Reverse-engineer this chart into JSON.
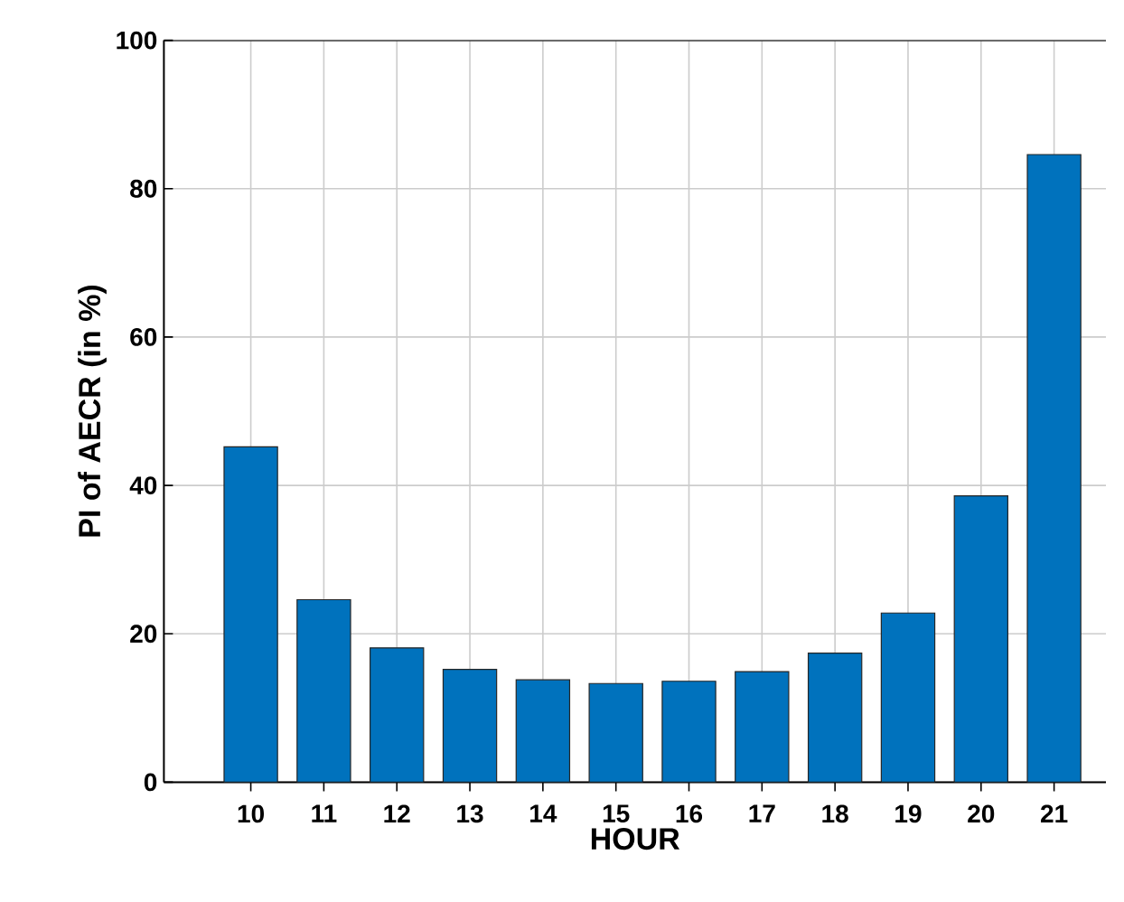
{
  "chart_data": {
    "type": "bar",
    "xlabel": "HOUR",
    "ylabel": "PI of AECR (in %)",
    "categories": [
      "10",
      "11",
      "12",
      "13",
      "14",
      "15",
      "16",
      "17",
      "18",
      "19",
      "20",
      "21"
    ],
    "values": [
      45.2,
      24.6,
      18.1,
      15.2,
      13.8,
      13.3,
      13.6,
      14.9,
      17.4,
      22.8,
      38.6,
      84.6
    ],
    "color": "#0072bd",
    "ylim": [
      0,
      100
    ],
    "yticks": [
      0,
      20,
      40,
      60,
      80,
      100
    ],
    "grid": true
  }
}
